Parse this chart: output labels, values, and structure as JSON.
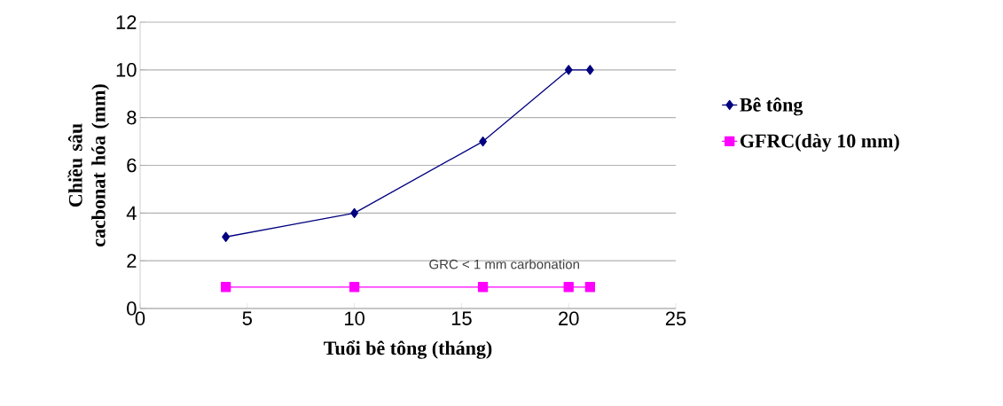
{
  "chart_data": {
    "type": "line",
    "xlabel": "Tuổi bê tông (tháng)",
    "ylabel": "Chiều sâu cacbonat hóa (mm)",
    "x": [
      4,
      10,
      16,
      20,
      21
    ],
    "series": [
      {
        "name": "Bê tông",
        "color": "#000080",
        "marker": "diamond",
        "values": [
          3,
          4,
          7,
          10,
          10
        ]
      },
      {
        "name": "GFRC(dày 10 mm)",
        "color": "#ff00ff",
        "marker": "square",
        "values": [
          0.9,
          0.9,
          0.9,
          0.9,
          0.9
        ]
      }
    ],
    "xlim": [
      0,
      25
    ],
    "xticks": [
      0,
      5,
      10,
      15,
      20,
      25
    ],
    "ylim": [
      0,
      12
    ],
    "yticks": [
      0,
      2,
      4,
      6,
      8,
      10,
      12
    ],
    "grid": "y",
    "legend": "right",
    "annotations": [
      "GRC < 1 mm carbonation"
    ]
  }
}
